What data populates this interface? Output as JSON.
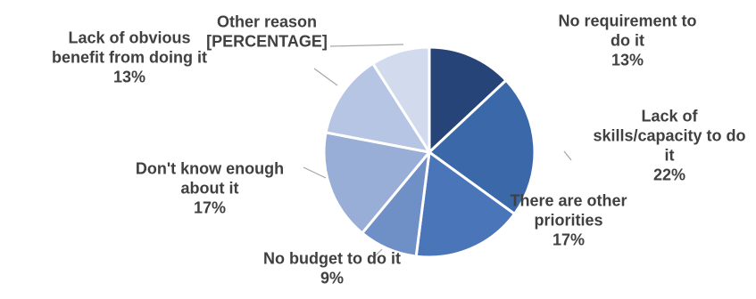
{
  "chart_data": {
    "type": "pie",
    "title": "",
    "start_angle_deg": 0,
    "direction": "clockwise",
    "slices": [
      {
        "label": "No requirement to do it",
        "value": 13,
        "value_label": "13%",
        "color": "#264478",
        "label_lines": [
          "No requirement to",
          "do it",
          "13%"
        ]
      },
      {
        "label": "Lack of skills/capacity to do it",
        "value": 22,
        "value_label": "22%",
        "color": "#3A68A8",
        "label_lines": [
          "Lack of",
          "skills/capacity to do",
          "it",
          "22%"
        ]
      },
      {
        "label": "There are other priorities",
        "value": 17,
        "value_label": "17%",
        "color": "#4A76B9",
        "label_lines": [
          "There are other",
          "priorities",
          "17%"
        ]
      },
      {
        "label": "No budget to do it",
        "value": 9,
        "value_label": "9%",
        "color": "#6F8FC7",
        "label_lines": [
          "No budget to do it",
          "9%"
        ]
      },
      {
        "label": "Don't know enough about it",
        "value": 17,
        "value_label": "17%",
        "color": "#99AED6",
        "label_lines": [
          "Don't know enough",
          "about it",
          "17%"
        ]
      },
      {
        "label": "Lack of obvious benefit from doing it",
        "value": 13,
        "value_label": "13%",
        "color": "#B6C5E3",
        "label_lines": [
          "Lack of obvious",
          "benefit from doing it",
          "13%"
        ]
      },
      {
        "label": "Other reason",
        "value": 9,
        "value_label": "[PERCENTAGE]",
        "color": "#D2DBEE",
        "label_lines": [
          "Other reason",
          "[PERCENTAGE]"
        ]
      }
    ]
  }
}
